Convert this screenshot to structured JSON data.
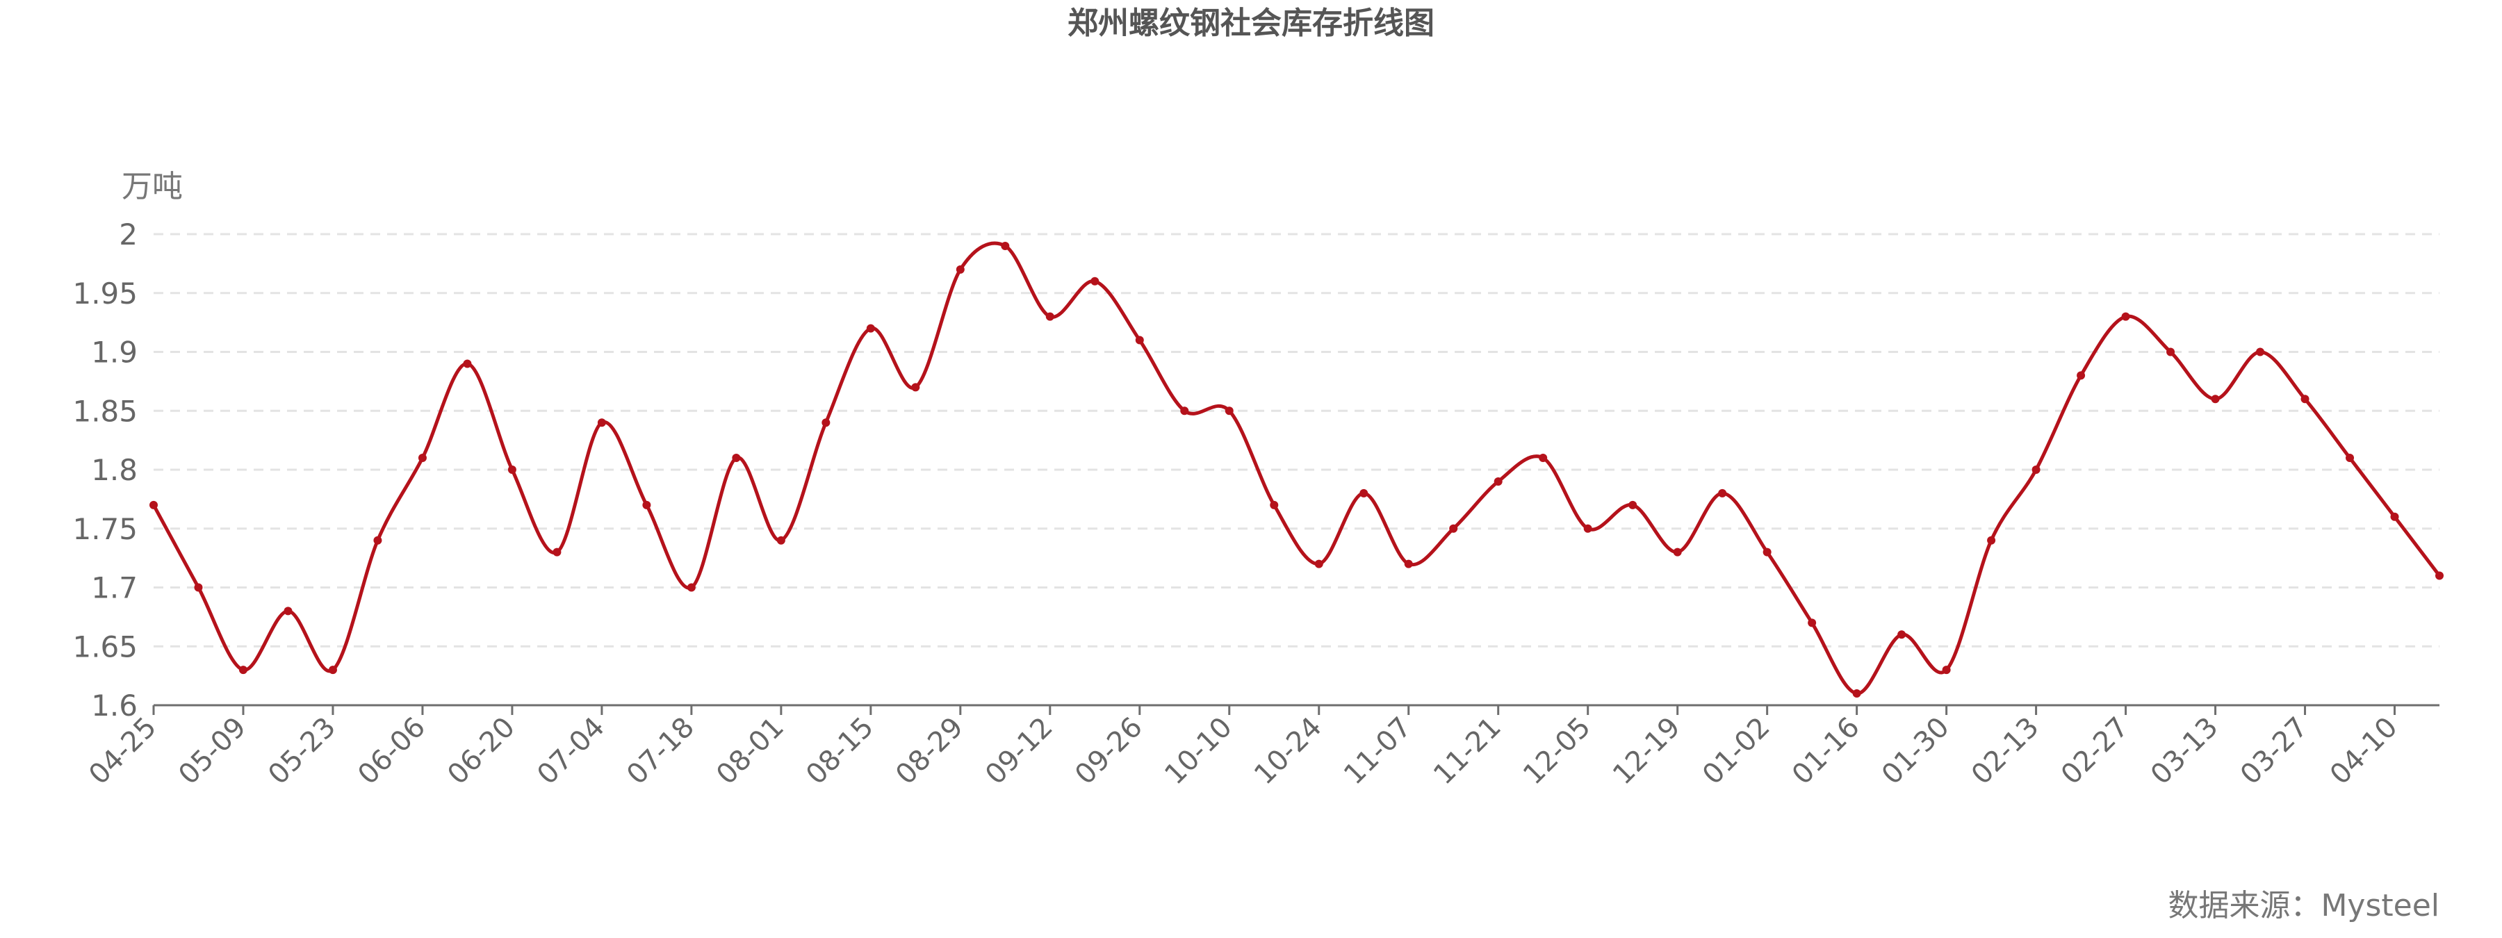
{
  "chart_data": {
    "type": "line",
    "title": "郑州螺纹钢社会库存折线图",
    "ylabel": "万吨",
    "source": "数据来源：Mysteel",
    "ylim": [
      1.6,
      2.0
    ],
    "yticks": [
      "1.6",
      "1.65",
      "1.7",
      "1.75",
      "1.8",
      "1.85",
      "1.9",
      "1.95",
      "2"
    ],
    "xtick_labels": [
      "04-25",
      "05-09",
      "05-23",
      "06-06",
      "06-20",
      "07-04",
      "07-18",
      "08-01",
      "08-15",
      "08-29",
      "09-12",
      "09-26",
      "10-10",
      "10-24",
      "11-07",
      "11-21",
      "12-05",
      "12-19",
      "01-02",
      "01-16",
      "01-30",
      "02-13",
      "02-27",
      "03-13",
      "03-27",
      "04-10"
    ],
    "grid": true,
    "color": "#b5121b",
    "series": [
      {
        "values": [
          1.77,
          1.7,
          1.63,
          1.68,
          1.63,
          1.74,
          1.81,
          1.89,
          1.8,
          1.73,
          1.84,
          1.77,
          1.7,
          1.81,
          1.74,
          1.84,
          1.92,
          1.87,
          1.97,
          1.99,
          1.93,
          1.96,
          1.91,
          1.85,
          1.85,
          1.77,
          1.72,
          1.78,
          1.72,
          1.75,
          1.79,
          1.81,
          1.75,
          1.77,
          1.73,
          1.78,
          1.73,
          1.67,
          1.61,
          1.66,
          1.63,
          1.74,
          1.8,
          1.88,
          1.93,
          1.9,
          1.86,
          1.9,
          1.86,
          1.81,
          1.76,
          1.71
        ]
      }
    ]
  }
}
